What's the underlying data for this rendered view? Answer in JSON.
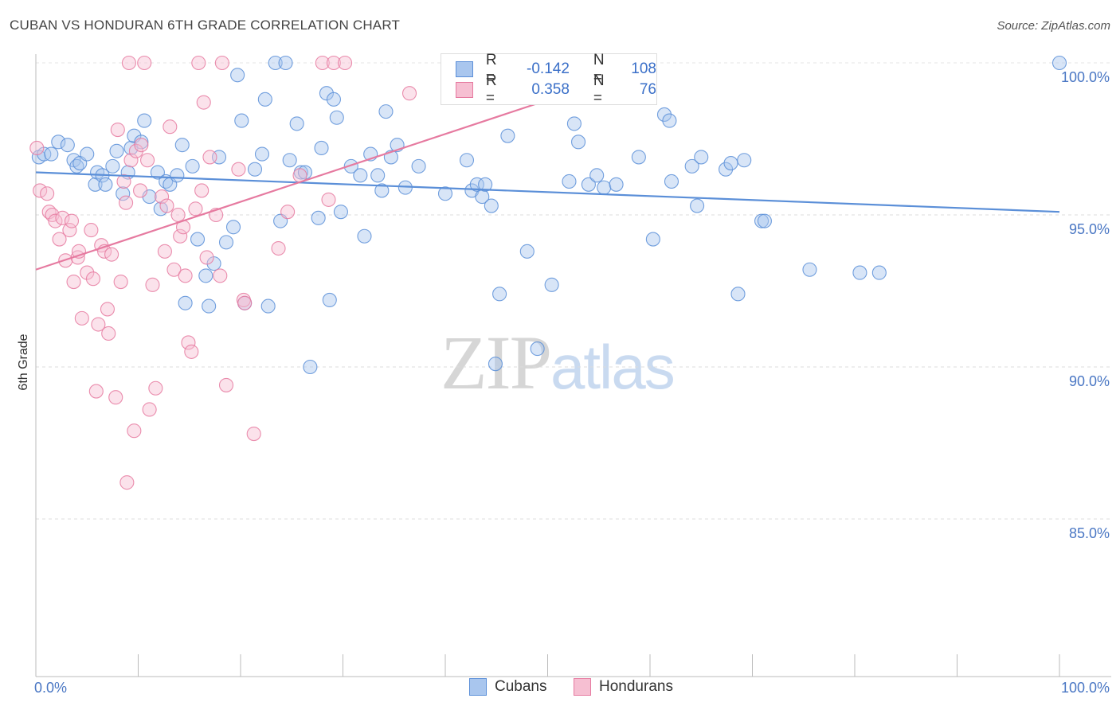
{
  "header": {
    "title": "CUBAN VS HONDURAN 6TH GRADE CORRELATION CHART",
    "source": "Source: ZipAtlas.com"
  },
  "watermark": {
    "zip": "ZIP",
    "atlas": "atlas"
  },
  "legend": {
    "r_label": "R =",
    "n_label": "N =",
    "rows": [
      {
        "r": "-0.142",
        "n": "108",
        "fill": "#a9c6ee",
        "stroke": "#5b8fd8"
      },
      {
        "r": "0.358",
        "n": "76",
        "fill": "#f6bfd2",
        "stroke": "#e67aa0"
      }
    ]
  },
  "bottom_legend": {
    "cubans": "Cubans",
    "hondurans": "Hondurans"
  },
  "chart_data": {
    "type": "scatter",
    "title": "CUBAN VS HONDURAN 6TH GRADE CORRELATION CHART",
    "xlabel": "",
    "ylabel": "6th Grade",
    "xlim": [
      0,
      100
    ],
    "ylim": [
      80.0,
      100.5
    ],
    "x_ticks": [
      "0.0%",
      "100.0%"
    ],
    "y_ticks": [
      {
        "value": 100,
        "label": "100.0%"
      },
      {
        "value": 95,
        "label": "95.0%"
      },
      {
        "value": 90,
        "label": "90.0%"
      },
      {
        "value": 85,
        "label": "85.0%"
      }
    ],
    "grid": true,
    "legend_position": "top-center",
    "series": [
      {
        "name": "Cubans",
        "color": "#5b8fd8",
        "fill": "#a9c6ee",
        "trend": {
          "x": [
            0,
            100
          ],
          "y": [
            96.4,
            95.1
          ]
        },
        "points": [
          [
            0.3,
            96.9
          ],
          [
            0.8,
            97.0
          ],
          [
            1.5,
            97.0
          ],
          [
            2.2,
            97.4
          ],
          [
            3.1,
            97.3
          ],
          [
            3.7,
            96.8
          ],
          [
            4.0,
            96.6
          ],
          [
            4.3,
            96.7
          ],
          [
            5.0,
            97.0
          ],
          [
            5.8,
            96.0
          ],
          [
            6.0,
            96.4
          ],
          [
            6.5,
            96.3
          ],
          [
            6.8,
            96.0
          ],
          [
            7.5,
            96.6
          ],
          [
            7.9,
            97.1
          ],
          [
            8.5,
            95.7
          ],
          [
            9.0,
            96.4
          ],
          [
            9.3,
            97.2
          ],
          [
            9.6,
            97.6
          ],
          [
            10.3,
            97.4
          ],
          [
            10.6,
            98.1
          ],
          [
            11.1,
            95.6
          ],
          [
            11.9,
            96.4
          ],
          [
            12.2,
            95.2
          ],
          [
            12.7,
            96.1
          ],
          [
            13.1,
            96.0
          ],
          [
            13.8,
            96.3
          ],
          [
            14.3,
            97.3
          ],
          [
            14.6,
            92.1
          ],
          [
            15.3,
            96.6
          ],
          [
            15.8,
            94.2
          ],
          [
            16.6,
            93.0
          ],
          [
            16.9,
            92.0
          ],
          [
            17.4,
            93.4
          ],
          [
            17.9,
            96.9
          ],
          [
            18.6,
            94.1
          ],
          [
            19.3,
            94.6
          ],
          [
            19.7,
            99.6
          ],
          [
            20.1,
            98.1
          ],
          [
            20.4,
            92.1
          ],
          [
            21.4,
            96.5
          ],
          [
            22.1,
            97.0
          ],
          [
            22.4,
            98.8
          ],
          [
            22.7,
            92.0
          ],
          [
            23.4,
            100.0
          ],
          [
            23.9,
            94.8
          ],
          [
            24.4,
            100.0
          ],
          [
            24.8,
            96.8
          ],
          [
            25.5,
            98.0
          ],
          [
            25.9,
            96.4
          ],
          [
            26.3,
            96.4
          ],
          [
            26.8,
            90.0
          ],
          [
            27.6,
            94.9
          ],
          [
            27.9,
            97.2
          ],
          [
            28.4,
            99.0
          ],
          [
            28.7,
            92.2
          ],
          [
            29.1,
            98.8
          ],
          [
            29.4,
            98.2
          ],
          [
            29.8,
            95.1
          ],
          [
            30.8,
            96.6
          ],
          [
            31.7,
            96.3
          ],
          [
            32.1,
            94.3
          ],
          [
            32.7,
            97.0
          ],
          [
            33.4,
            96.3
          ],
          [
            33.8,
            95.8
          ],
          [
            34.2,
            98.4
          ],
          [
            34.7,
            96.9
          ],
          [
            35.3,
            97.3
          ],
          [
            36.1,
            95.9
          ],
          [
            37.4,
            96.6
          ],
          [
            40.0,
            95.7
          ],
          [
            42.1,
            96.8
          ],
          [
            42.6,
            95.8
          ],
          [
            43.1,
            96.0
          ],
          [
            43.6,
            95.6
          ],
          [
            43.9,
            96.0
          ],
          [
            44.5,
            95.3
          ],
          [
            44.9,
            90.1
          ],
          [
            45.3,
            92.4
          ],
          [
            46.1,
            97.6
          ],
          [
            48.0,
            93.8
          ],
          [
            49.0,
            90.6
          ],
          [
            50.4,
            92.7
          ],
          [
            52.1,
            96.1
          ],
          [
            52.6,
            98.0
          ],
          [
            53.0,
            97.4
          ],
          [
            54.0,
            96.0
          ],
          [
            54.8,
            96.3
          ],
          [
            55.5,
            95.9
          ],
          [
            56.7,
            96.0
          ],
          [
            58.9,
            96.9
          ],
          [
            60.3,
            94.2
          ],
          [
            61.4,
            98.3
          ],
          [
            61.9,
            98.1
          ],
          [
            62.1,
            96.1
          ],
          [
            64.1,
            96.6
          ],
          [
            64.6,
            95.3
          ],
          [
            65.0,
            96.9
          ],
          [
            67.4,
            96.5
          ],
          [
            67.9,
            96.7
          ],
          [
            68.6,
            92.4
          ],
          [
            69.2,
            96.8
          ],
          [
            70.9,
            94.8
          ],
          [
            71.2,
            94.8
          ],
          [
            75.6,
            93.2
          ],
          [
            80.5,
            93.1
          ],
          [
            82.4,
            93.1
          ],
          [
            100.0,
            100.0
          ]
        ]
      },
      {
        "name": "Hondurans",
        "color": "#e67aa0",
        "fill": "#f6bfd2",
        "trend": {
          "x": [
            0,
            52
          ],
          "y": [
            93.2,
            99.0
          ]
        },
        "points": [
          [
            0.1,
            97.2
          ],
          [
            0.4,
            95.8
          ],
          [
            1.1,
            95.7
          ],
          [
            1.3,
            95.1
          ],
          [
            1.6,
            95.0
          ],
          [
            1.9,
            94.8
          ],
          [
            2.3,
            94.2
          ],
          [
            2.6,
            94.9
          ],
          [
            2.9,
            93.5
          ],
          [
            3.3,
            94.5
          ],
          [
            3.5,
            94.8
          ],
          [
            3.7,
            92.8
          ],
          [
            4.1,
            93.6
          ],
          [
            4.2,
            93.8
          ],
          [
            4.5,
            91.6
          ],
          [
            5.0,
            93.1
          ],
          [
            5.4,
            94.5
          ],
          [
            5.6,
            92.9
          ],
          [
            5.9,
            89.2
          ],
          [
            6.1,
            91.4
          ],
          [
            6.4,
            94.0
          ],
          [
            6.7,
            93.8
          ],
          [
            7.0,
            91.9
          ],
          [
            7.1,
            91.1
          ],
          [
            7.4,
            93.7
          ],
          [
            7.8,
            89.0
          ],
          [
            8.0,
            97.8
          ],
          [
            8.3,
            92.8
          ],
          [
            8.6,
            96.1
          ],
          [
            8.8,
            95.4
          ],
          [
            8.9,
            86.2
          ],
          [
            9.1,
            100.0
          ],
          [
            9.3,
            96.8
          ],
          [
            9.6,
            87.9
          ],
          [
            9.8,
            97.1
          ],
          [
            10.2,
            95.8
          ],
          [
            10.3,
            97.3
          ],
          [
            10.6,
            100.0
          ],
          [
            10.9,
            96.8
          ],
          [
            11.1,
            88.6
          ],
          [
            11.4,
            92.7
          ],
          [
            11.7,
            89.3
          ],
          [
            12.3,
            95.6
          ],
          [
            12.6,
            93.8
          ],
          [
            12.8,
            95.3
          ],
          [
            13.1,
            97.9
          ],
          [
            13.5,
            93.2
          ],
          [
            13.9,
            95.0
          ],
          [
            14.1,
            94.3
          ],
          [
            14.4,
            94.6
          ],
          [
            14.6,
            93.0
          ],
          [
            14.9,
            90.8
          ],
          [
            15.2,
            90.5
          ],
          [
            15.6,
            95.2
          ],
          [
            15.9,
            100.0
          ],
          [
            16.2,
            95.8
          ],
          [
            16.4,
            98.7
          ],
          [
            16.7,
            93.6
          ],
          [
            17.0,
            96.9
          ],
          [
            17.6,
            95.0
          ],
          [
            18.0,
            93.0
          ],
          [
            18.2,
            100.0
          ],
          [
            18.6,
            89.4
          ],
          [
            19.8,
            96.5
          ],
          [
            20.3,
            92.2
          ],
          [
            20.4,
            92.1
          ],
          [
            21.3,
            87.8
          ],
          [
            23.7,
            93.9
          ],
          [
            24.6,
            95.1
          ],
          [
            25.8,
            96.3
          ],
          [
            28.0,
            100.0
          ],
          [
            28.6,
            95.5
          ],
          [
            29.1,
            100.0
          ],
          [
            30.2,
            100.0
          ],
          [
            36.5,
            99.0
          ],
          [
            40.6,
            100.0
          ]
        ]
      }
    ]
  }
}
